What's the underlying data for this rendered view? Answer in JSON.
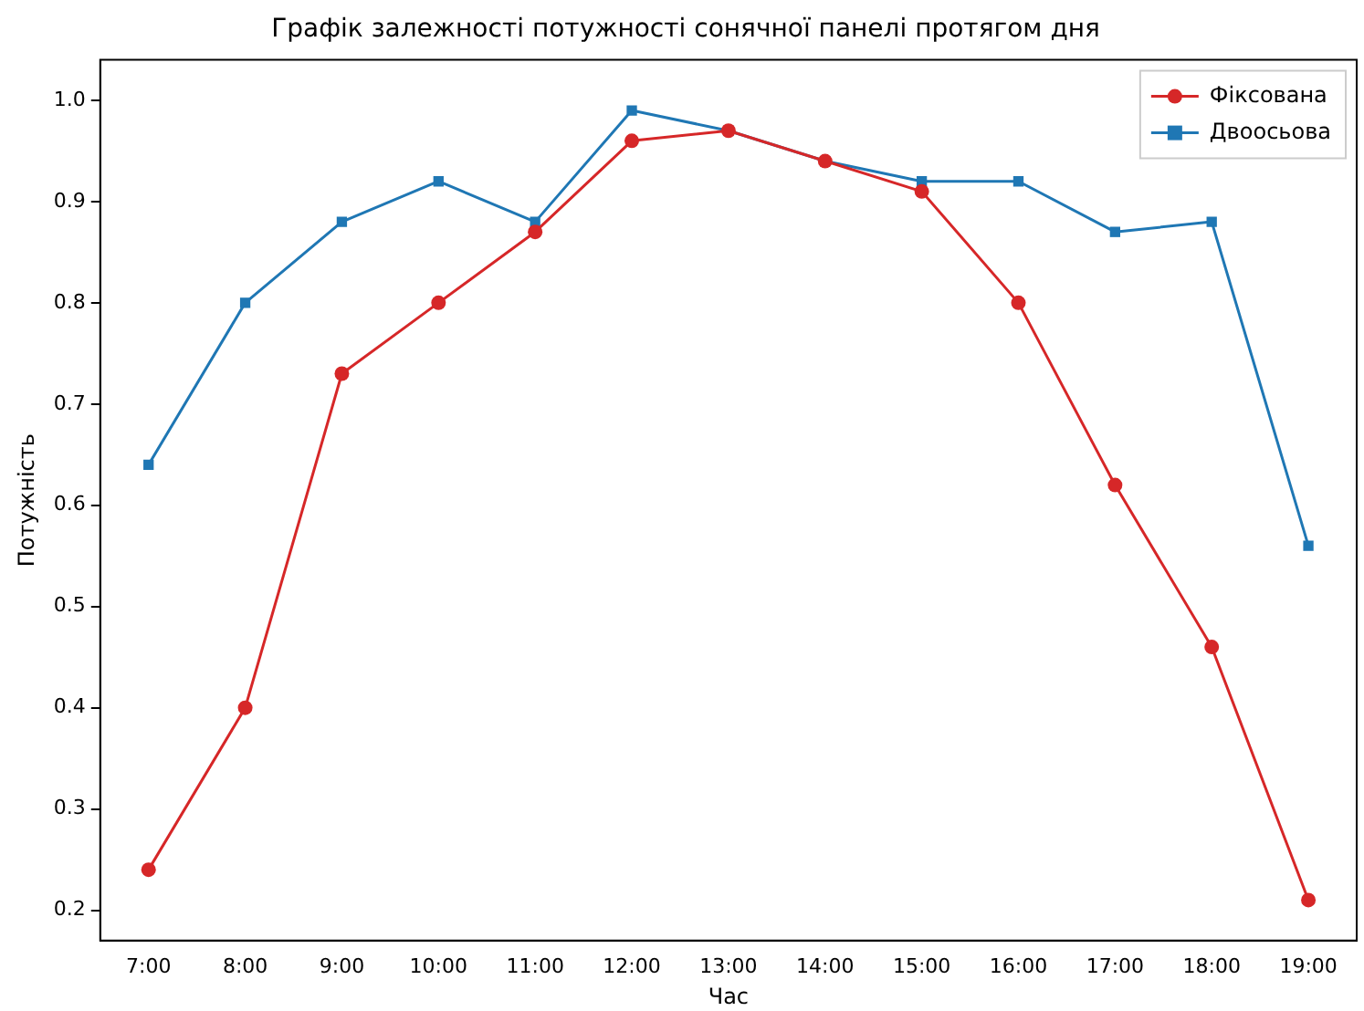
{
  "chart_data": {
    "type": "line",
    "title": "Графік залежності потужності сонячної панелі протягом дня",
    "xlabel": "Час",
    "ylabel": "Потужність",
    "categories": [
      "7:00",
      "8:00",
      "9:00",
      "10:00",
      "11:00",
      "12:00",
      "13:00",
      "14:00",
      "15:00",
      "16:00",
      "17:00",
      "18:00",
      "19:00"
    ],
    "series": [
      {
        "name": "Фіксована",
        "color": "#d62728",
        "marker": "circle",
        "values": [
          0.24,
          0.4,
          0.73,
          0.8,
          0.87,
          0.96,
          0.97,
          0.94,
          0.91,
          0.8,
          0.62,
          0.46,
          0.21
        ]
      },
      {
        "name": "Двоосьова",
        "color": "#1f77b4",
        "marker": "square",
        "values": [
          0.64,
          0.8,
          0.88,
          0.92,
          0.88,
          0.99,
          0.97,
          0.94,
          0.92,
          0.92,
          0.87,
          0.88,
          0.56
        ]
      }
    ],
    "ylim": [
      0.17,
      1.04
    ],
    "yticks": [
      0.2,
      0.3,
      0.4,
      0.5,
      0.6,
      0.7,
      0.8,
      0.9,
      {
        "value": 1,
        "label": "1.0"
      }
    ],
    "grid": false,
    "legend": "top right",
    "line_style": "solid"
  }
}
